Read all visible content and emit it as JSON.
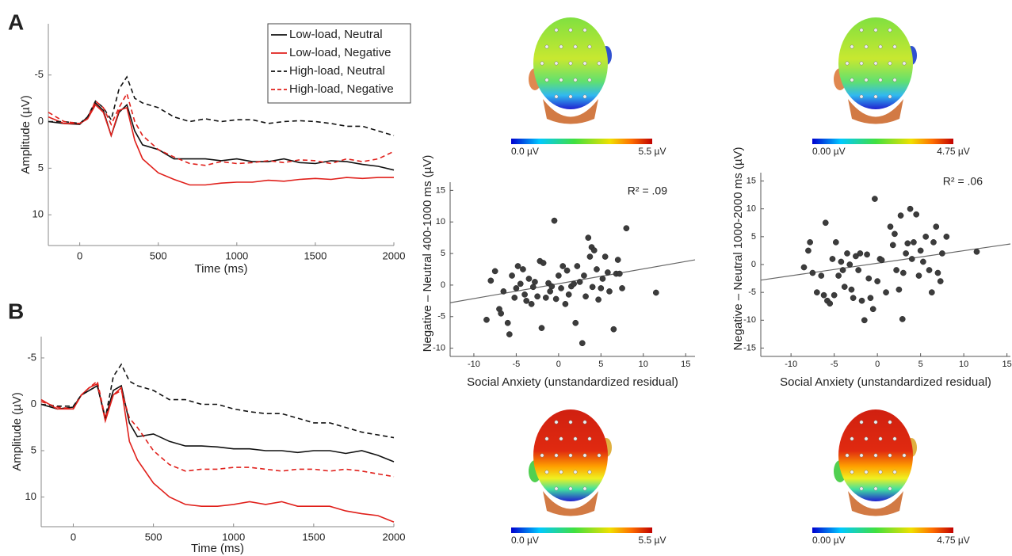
{
  "panel_labels": [
    "A",
    "B"
  ],
  "chart_data": [
    {
      "type": "line",
      "x_label": "Time (ms)",
      "y_label": "Amplitude (µV)",
      "y_inverted": true,
      "legend": "upper right",
      "xlim": [
        -200,
        2000
      ],
      "ylim": [
        -10.5,
        13.3
      ],
      "xticks": [
        0,
        500,
        1000,
        1500,
        2000
      ],
      "yticks": [
        -5,
        0,
        5,
        10
      ],
      "x": [
        -200,
        -100,
        0,
        50,
        100,
        150,
        200,
        250,
        300,
        350,
        400,
        500,
        600,
        700,
        800,
        900,
        1000,
        1100,
        1200,
        1300,
        1400,
        1500,
        1600,
        1700,
        1800,
        1900,
        2000
      ],
      "series": [
        {
          "name": "Low-load, Neutral",
          "color": "#111111",
          "line_style": "solid",
          "values": [
            0,
            0.2,
            0.3,
            -0.5,
            -2,
            -1.2,
            1.5,
            -1,
            -1.8,
            1,
            2.5,
            3,
            4,
            4,
            4,
            4.2,
            4,
            4.3,
            4.3,
            4,
            4.4,
            4.5,
            4.2,
            4.3,
            4.6,
            4.8,
            5.2
          ]
        },
        {
          "name": "Low-load, Negative",
          "color": "#e0201b",
          "line_style": "solid",
          "values": [
            -0.5,
            0.2,
            0.2,
            -0.3,
            -1.8,
            -1,
            1.5,
            -1.2,
            -1.5,
            2,
            4,
            5.5,
            6.2,
            6.8,
            6.8,
            6.6,
            6.5,
            6.5,
            6.3,
            6.4,
            6.2,
            6.1,
            6.2,
            6.0,
            6.1,
            6.0,
            6.0
          ]
        },
        {
          "name": "High-load, Neutral",
          "color": "#111111",
          "line_style": "dashed",
          "values": [
            0,
            0,
            0.2,
            -0.5,
            -2.2,
            -1.5,
            -0.2,
            -3.5,
            -4.8,
            -2.5,
            -2,
            -1.5,
            -0.5,
            0,
            -0.3,
            0,
            -0.2,
            -0.2,
            0.2,
            0,
            -0.1,
            0,
            0.2,
            0.5,
            0.5,
            1,
            1.5
          ]
        },
        {
          "name": "High-load, Negative",
          "color": "#e0201b",
          "line_style": "dashed",
          "values": [
            -1,
            0,
            0.2,
            -0.3,
            -2.2,
            -1.5,
            0.3,
            -1.5,
            -3,
            0,
            1.5,
            3,
            3.8,
            4.5,
            4.7,
            4.3,
            4.5,
            4.4,
            4.2,
            4.4,
            4.1,
            4.2,
            4.5,
            4,
            4.3,
            4,
            3.2
          ]
        }
      ]
    },
    {
      "type": "line",
      "x_label": "Time (ms)",
      "y_label": "Amplitude (µV)",
      "y_inverted": true,
      "xlim": [
        -200,
        2000
      ],
      "ylim": [
        -7.3,
        13.2
      ],
      "xticks": [
        0,
        500,
        1000,
        1500,
        2000
      ],
      "yticks": [
        -5,
        0,
        5,
        10
      ],
      "x": [
        -200,
        -100,
        0,
        50,
        100,
        150,
        200,
        250,
        300,
        350,
        400,
        500,
        600,
        700,
        800,
        900,
        1000,
        1100,
        1200,
        1300,
        1400,
        1500,
        1600,
        1700,
        1800,
        1900,
        2000
      ],
      "series": [
        {
          "color": "#111111",
          "line_style": "solid",
          "values": [
            0,
            0.5,
            0.3,
            -1,
            -1.5,
            -2,
            1.5,
            -1.5,
            -2,
            2,
            3.5,
            3.2,
            4,
            4.5,
            4.5,
            4.6,
            4.8,
            4.8,
            5,
            5,
            5.2,
            5,
            5,
            5.3,
            5,
            5.5,
            6.2
          ]
        },
        {
          "color": "#e0201b",
          "line_style": "solid",
          "values": [
            -0.5,
            0.5,
            0.5,
            -1,
            -1.8,
            -2.2,
            1.8,
            -1,
            -1.8,
            4,
            6,
            8.5,
            10,
            10.8,
            11,
            11,
            10.8,
            10.5,
            10.8,
            10.5,
            11,
            11,
            11,
            11.5,
            11.8,
            12,
            12.7
          ]
        },
        {
          "color": "#111111",
          "line_style": "dashed",
          "values": [
            0,
            0.2,
            0.2,
            -1,
            -1.5,
            -2,
            1.5,
            -3,
            -4.3,
            -2.5,
            -2,
            -1.5,
            -0.5,
            -0.5,
            0,
            0,
            0.5,
            0.8,
            1,
            1,
            1.5,
            2,
            2,
            2.5,
            3,
            3.3,
            3.6
          ]
        },
        {
          "color": "#e0201b",
          "line_style": "dashed",
          "values": [
            -0.3,
            0.3,
            0.5,
            -1,
            -1.8,
            -2.5,
            1.5,
            -1,
            -1.5,
            1.5,
            2.5,
            5,
            6.5,
            7.2,
            7,
            7,
            6.8,
            6.8,
            7,
            7.2,
            7,
            7,
            7.2,
            7,
            7.2,
            7.5,
            7.8
          ]
        }
      ]
    },
    {
      "type": "scatter",
      "x_label": "Social Anxiety (unstandardized residual)",
      "y_label": "Negative – Neutral 400-1000 ms (µV)",
      "annotation": "R² = .09",
      "xlim": [
        -12.8,
        16.1
      ],
      "ylim": [
        -11.3,
        16.3
      ],
      "xticks": [
        -10,
        -5,
        0,
        5,
        10,
        15
      ],
      "yticks": [
        -10,
        -5,
        0,
        5,
        10,
        15
      ],
      "color": "#3c3c3c",
      "x": [
        -8.5,
        -8,
        -7.5,
        -7,
        -6.8,
        -6.5,
        -6,
        -5.8,
        -5.5,
        -5.2,
        -5,
        -4.8,
        -4.5,
        -4.2,
        -4,
        -3.8,
        -3.5,
        -3.2,
        -3,
        -2.8,
        -2.5,
        -2.2,
        -2,
        -1.8,
        -1.5,
        -1.2,
        -1,
        -0.8,
        -0.5,
        -0.3,
        0,
        0.3,
        0.5,
        0.8,
        1,
        1.2,
        1.5,
        1.8,
        2,
        2.2,
        2.5,
        2.8,
        3,
        3.2,
        3.5,
        3.7,
        3.9,
        4,
        4.2,
        4.5,
        4.7,
        5,
        5.2,
        5.5,
        5.8,
        6,
        6.5,
        6.8,
        7,
        7.2,
        7.5,
        8,
        11.5
      ],
      "values": [
        -5.5,
        0.7,
        2.2,
        -3.8,
        -4.5,
        -1,
        -6,
        -7.8,
        1.5,
        -2,
        -0.5,
        3,
        0.2,
        2.5,
        -1.5,
        -2.5,
        1,
        -3,
        -0.3,
        0.5,
        -1.8,
        3.8,
        -6.8,
        3.5,
        -2,
        0.3,
        -1,
        -0.2,
        10.2,
        -2.2,
        1.5,
        -0.5,
        3,
        -3,
        2.3,
        -1.5,
        -0.2,
        0.2,
        -6,
        3,
        0.5,
        -9.2,
        1.5,
        -1.8,
        7.5,
        4.5,
        6,
        -0.3,
        5.5,
        2.5,
        -2.3,
        -0.5,
        1,
        4.5,
        2,
        -1,
        -7,
        1.8,
        4,
        1.8,
        -0.5,
        9,
        -1.2
      ],
      "fit": {
        "color": "#666666",
        "x": [
          -12.8,
          16.1
        ],
        "values": [
          -2.8,
          4.0
        ]
      }
    },
    {
      "type": "scatter",
      "x_label": "Social Anxiety (unstandardized residual)",
      "y_label": "Negative – Neutral 1000-2000 ms (µV)",
      "annotation": "R² = .06",
      "xlim": [
        -13.5,
        15.4
      ],
      "ylim": [
        -16.5,
        16.5
      ],
      "xticks": [
        -10,
        -5,
        0,
        5,
        10,
        15
      ],
      "yticks": [
        -15,
        -10,
        -5,
        0,
        5,
        10,
        15
      ],
      "color": "#3c3c3c",
      "x": [
        -8.5,
        -8,
        -7.8,
        -7.5,
        -7,
        -6.5,
        -6.2,
        -6,
        -5.8,
        -5.5,
        -5.2,
        -5,
        -4.8,
        -4.5,
        -4.2,
        -4,
        -3.8,
        -3.5,
        -3.2,
        -3,
        -2.8,
        -2.5,
        -2.2,
        -2,
        -1.8,
        -1.5,
        -1.2,
        -1,
        -0.8,
        -0.5,
        -0.3,
        0,
        0.3,
        0.5,
        1,
        1.5,
        1.8,
        2,
        2.2,
        2.5,
        2.7,
        2.9,
        3,
        3.3,
        3.5,
        3.8,
        4,
        4.2,
        4.5,
        4.8,
        5,
        5.3,
        5.6,
        6,
        6.3,
        6.5,
        6.8,
        7,
        7.3,
        7.5,
        8,
        11.5
      ],
      "values": [
        -0.5,
        2.5,
        4,
        -1.5,
        -5,
        -2,
        -5.5,
        7.5,
        -6.5,
        -7,
        1,
        -5.5,
        4,
        -2,
        0.5,
        -1,
        -4,
        2,
        0,
        -4.5,
        -6,
        1.5,
        -1,
        2,
        -6.5,
        -10,
        1.8,
        -2.5,
        -6,
        -8,
        11.8,
        -3,
        1,
        0.8,
        -5,
        6.8,
        3.5,
        5.5,
        -1,
        -4.5,
        8.8,
        -9.8,
        -1.5,
        2,
        3.8,
        10,
        1,
        4,
        9,
        -2,
        2.5,
        0.5,
        5,
        -1,
        -5,
        4,
        6.8,
        -1.5,
        -3,
        2,
        5,
        2.3
      ],
      "fit": {
        "color": "#666666",
        "x": [
          -13.5,
          15.4
        ],
        "values": [
          -2.8,
          3.7
        ]
      }
    }
  ],
  "topographies": [
    {
      "scale_min": "0.0 µV",
      "scale_max": "5.5 µV"
    },
    {
      "scale_min": "0.00 µV",
      "scale_max": "4.75 µV"
    },
    {
      "scale_min": "0.0 µV",
      "scale_max": "5.5 µV"
    },
    {
      "scale_min": "0.00 µV",
      "scale_max": "4.75 µV"
    }
  ]
}
